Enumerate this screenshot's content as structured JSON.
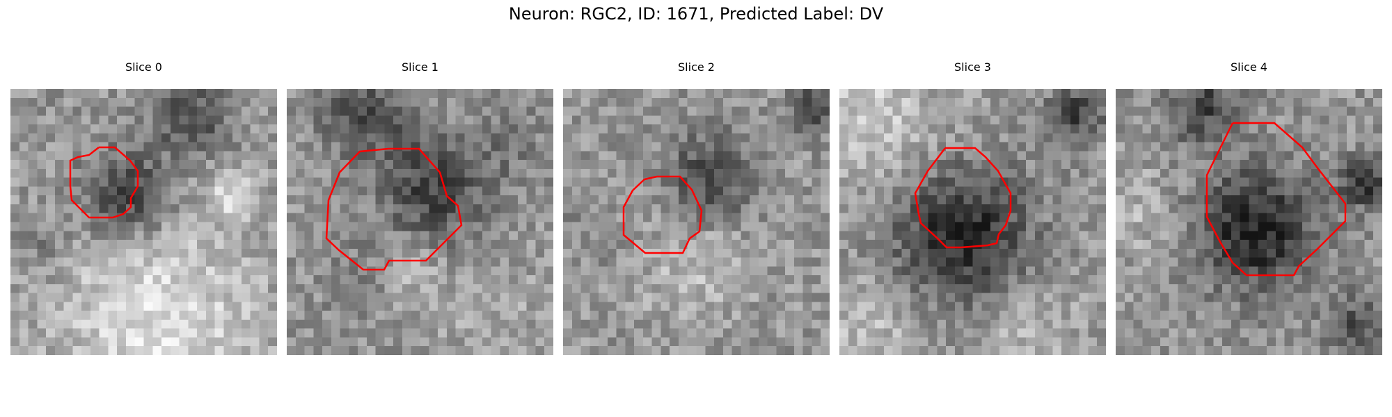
{
  "figure": {
    "title": "Neuron: RGC2, ID: 1671, Predicted Label: DV",
    "contour_color": "#ff0000"
  },
  "panels": [
    {
      "title": "Slice 0"
    },
    {
      "title": "Slice 1"
    },
    {
      "title": "Slice 2"
    },
    {
      "title": "Slice 3"
    },
    {
      "title": "Slice 4"
    }
  ]
}
